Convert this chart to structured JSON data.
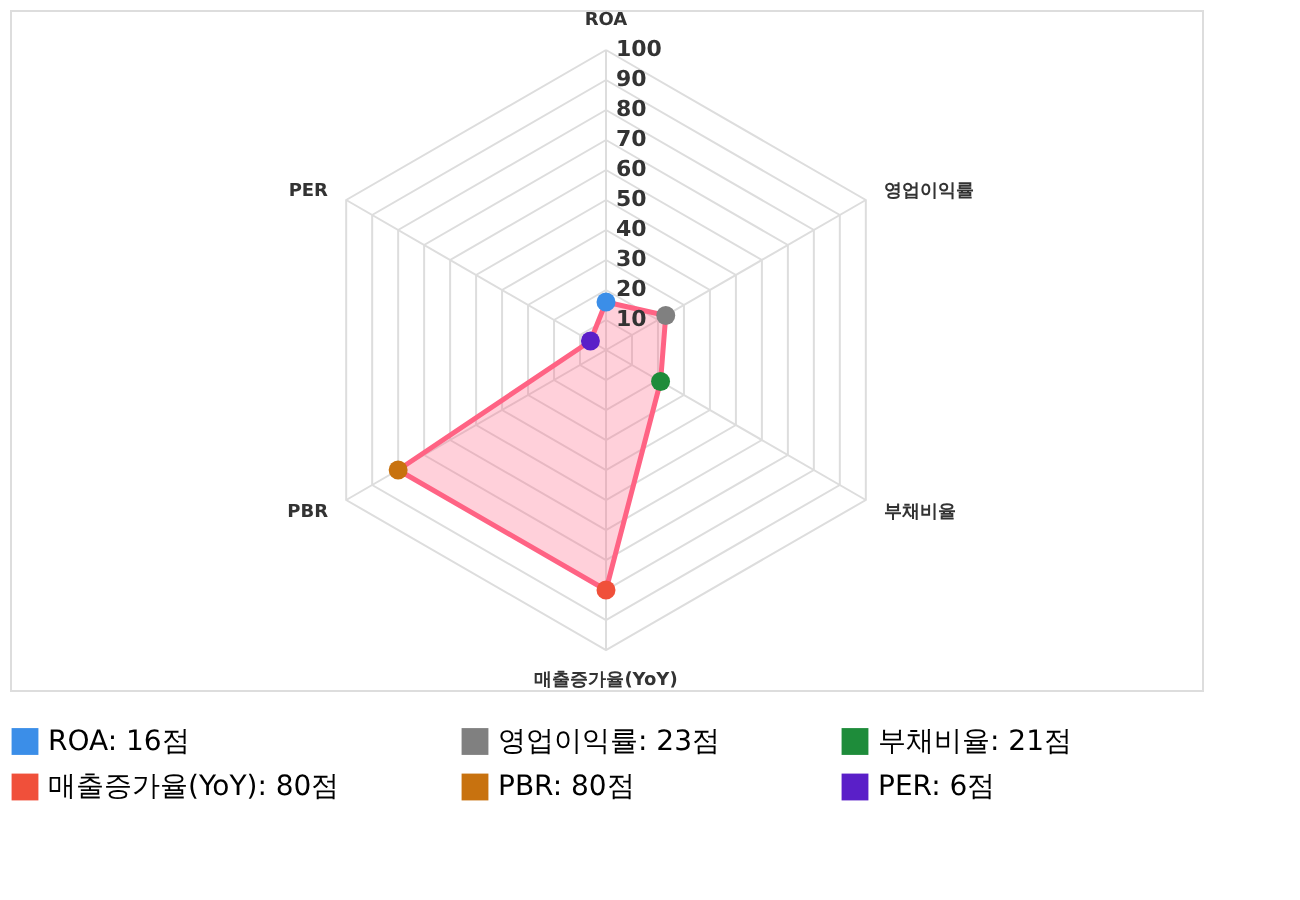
{
  "chart_data": {
    "type": "radar",
    "categories": [
      "ROA",
      "영업이익률",
      "부채비율",
      "매출증가율(YoY)",
      "PBR",
      "PER"
    ],
    "series": [
      {
        "color": "#ff6384",
        "values": [
          16,
          23,
          21,
          80,
          80,
          6
        ],
        "colors": [
          "#3b8ee8",
          "#808080",
          "#1e8c3a",
          "#f0503a",
          "#c8720f",
          "#5a1fc8"
        ]
      }
    ],
    "annotations": [
      "ROA: 16점",
      "영업이익률: 23점",
      "부채비율: 21점",
      "매출증가율(YoY): 80점",
      "PBR: 80점",
      "PER: 6점"
    ],
    "ylim": [
      0,
      100
    ],
    "yticks": [
      10,
      20,
      30,
      40,
      50,
      60,
      70,
      80,
      90,
      100
    ],
    "grid": true,
    "marker": "circle",
    "line_style": "solid"
  }
}
